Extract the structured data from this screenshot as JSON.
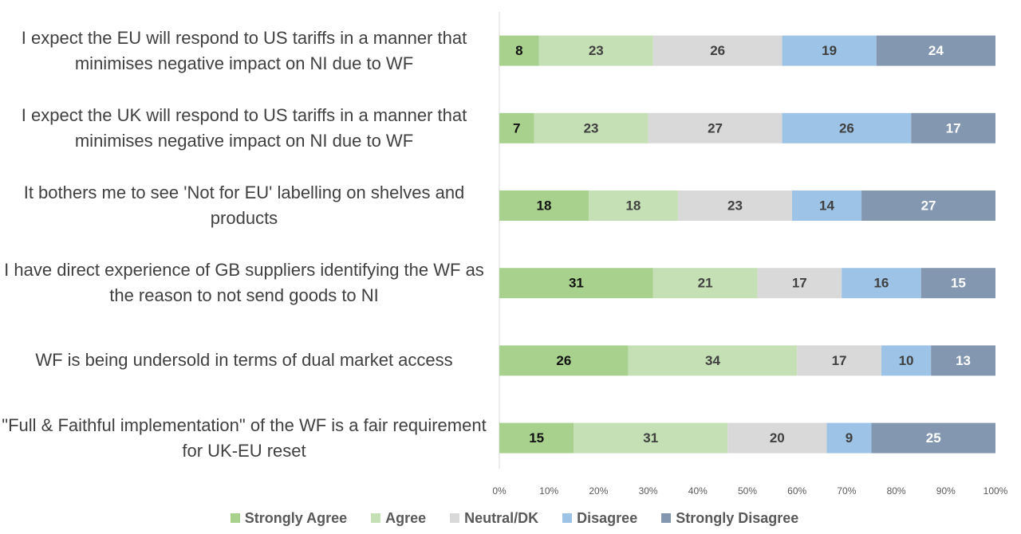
{
  "chart_data": {
    "type": "stacked_bar_horizontal",
    "categories": [
      "I expect the EU will respond to US tariffs in a manner that minimises negative impact on NI due to WF",
      "I expect the UK will respond to US tariffs in a manner that minimises negative impact on NI due to WF",
      "It bothers me to see 'Not for EU' labelling on shelves and products",
      "I have direct experience of GB suppliers identifying the WF as the reason to not send goods to NI",
      "WF is being undersold in terms of dual market access",
      "\"Full & Faithful implementation\" of the WF is a fair requirement for UK-EU reset"
    ],
    "series": [
      {
        "name": "Strongly Agree",
        "color": "#a9d18e",
        "values": [
          8,
          7,
          18,
          31,
          26,
          15
        ]
      },
      {
        "name": "Agree",
        "color": "#c5e0b4",
        "values": [
          23,
          23,
          18,
          21,
          34,
          31
        ]
      },
      {
        "name": "Neutral/DK",
        "color": "#d9d9d9",
        "values": [
          26,
          27,
          23,
          17,
          17,
          20
        ]
      },
      {
        "name": "Disagree",
        "color": "#9dc3e6",
        "values": [
          19,
          26,
          14,
          16,
          10,
          9
        ]
      },
      {
        "name": "Strongly Disagree",
        "color": "#8497b0",
        "values": [
          24,
          17,
          27,
          15,
          13,
          25
        ]
      }
    ],
    "xlim": [
      0,
      100
    ],
    "xticks": [
      {
        "value": 0,
        "label": "0%"
      },
      {
        "value": 10,
        "label": "10%"
      },
      {
        "value": 20,
        "label": "20%"
      },
      {
        "value": 30,
        "label": "30%"
      },
      {
        "value": 40,
        "label": "40%"
      },
      {
        "value": 50,
        "label": "50%"
      },
      {
        "value": 60,
        "label": "60%"
      },
      {
        "value": 70,
        "label": "70%"
      },
      {
        "value": 80,
        "label": "80%"
      },
      {
        "value": 90,
        "label": "90%"
      },
      {
        "value": 100,
        "label": "100%"
      }
    ],
    "legend": "bottom"
  }
}
